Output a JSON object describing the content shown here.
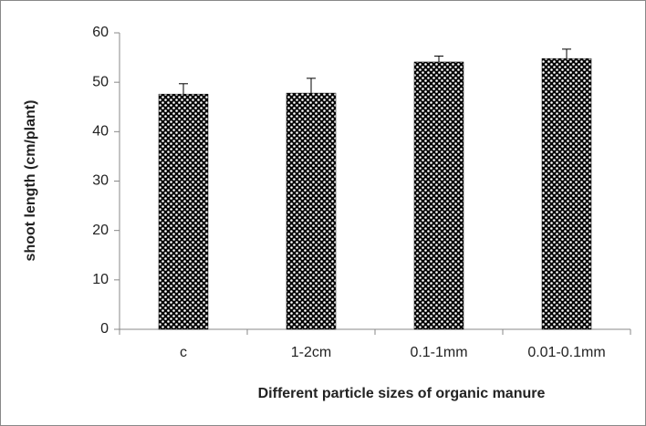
{
  "chart_data": {
    "type": "bar",
    "categories": [
      "c",
      "1-2cm",
      "0.1-1mm",
      "0.01-0.1mm"
    ],
    "values": [
      47.6,
      47.8,
      54.1,
      54.8
    ],
    "errors": [
      2.1,
      3.0,
      1.2,
      1.9
    ],
    "color": "#000000",
    "xlabel": "Different particle sizes of organic manure",
    "ylabel": "shoot length (cm/plant)",
    "ylim": [
      0,
      60
    ],
    "yticks": [
      0,
      10,
      20,
      30,
      40,
      50,
      60
    ]
  }
}
